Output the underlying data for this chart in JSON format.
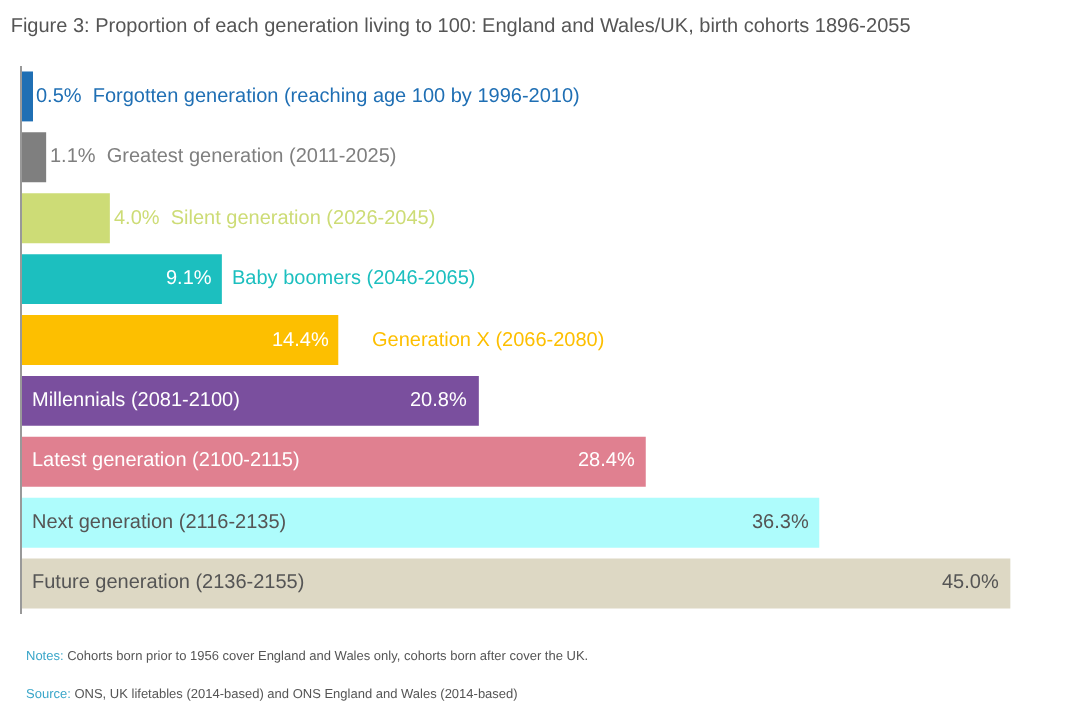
{
  "chart_data": {
    "type": "bar",
    "orientation": "horizontal",
    "title": "Figure 3: Proportion of each generation living to 100: England and Wales/UK, birth cohorts 1896-2055",
    "categories": [
      "Forgotten generation (reaching age 100 by 1996-2010)",
      "Greatest generation (2011-2025)",
      "Silent generation (2026-2045)",
      "Baby boomers (2046-2065)",
      "Generation X (2066-2080)",
      "Millennials (2081-2100)",
      "Latest generation (2100-2115)",
      "Next generation (2116-2135)",
      "Future generation (2136-2155)"
    ],
    "values": [
      0.5,
      1.1,
      4.0,
      9.1,
      14.4,
      20.8,
      28.4,
      36.3,
      45.0
    ],
    "value_labels": [
      "0.5%",
      "1.1%",
      "4.0%",
      "9.1%",
      "14.4%",
      "20.8%",
      "28.4%",
      "36.3%",
      "45.0%"
    ],
    "colors": [
      "#1f6fb4",
      "#7f7f7f",
      "#cddc76",
      "#1cbfbf",
      "#fdbf00",
      "#7a4f9e",
      "#e08090",
      "#aefcfc",
      "#ddd8c4"
    ],
    "tick_labels": false,
    "annotations": [
      "Notes: Cohorts born prior to 1956 cover England and Wales only, cohorts born after cover the UK.",
      "Source: ONS, UK lifetables (2014-based) and ONS England and Wales (2014-based)"
    ]
  }
}
